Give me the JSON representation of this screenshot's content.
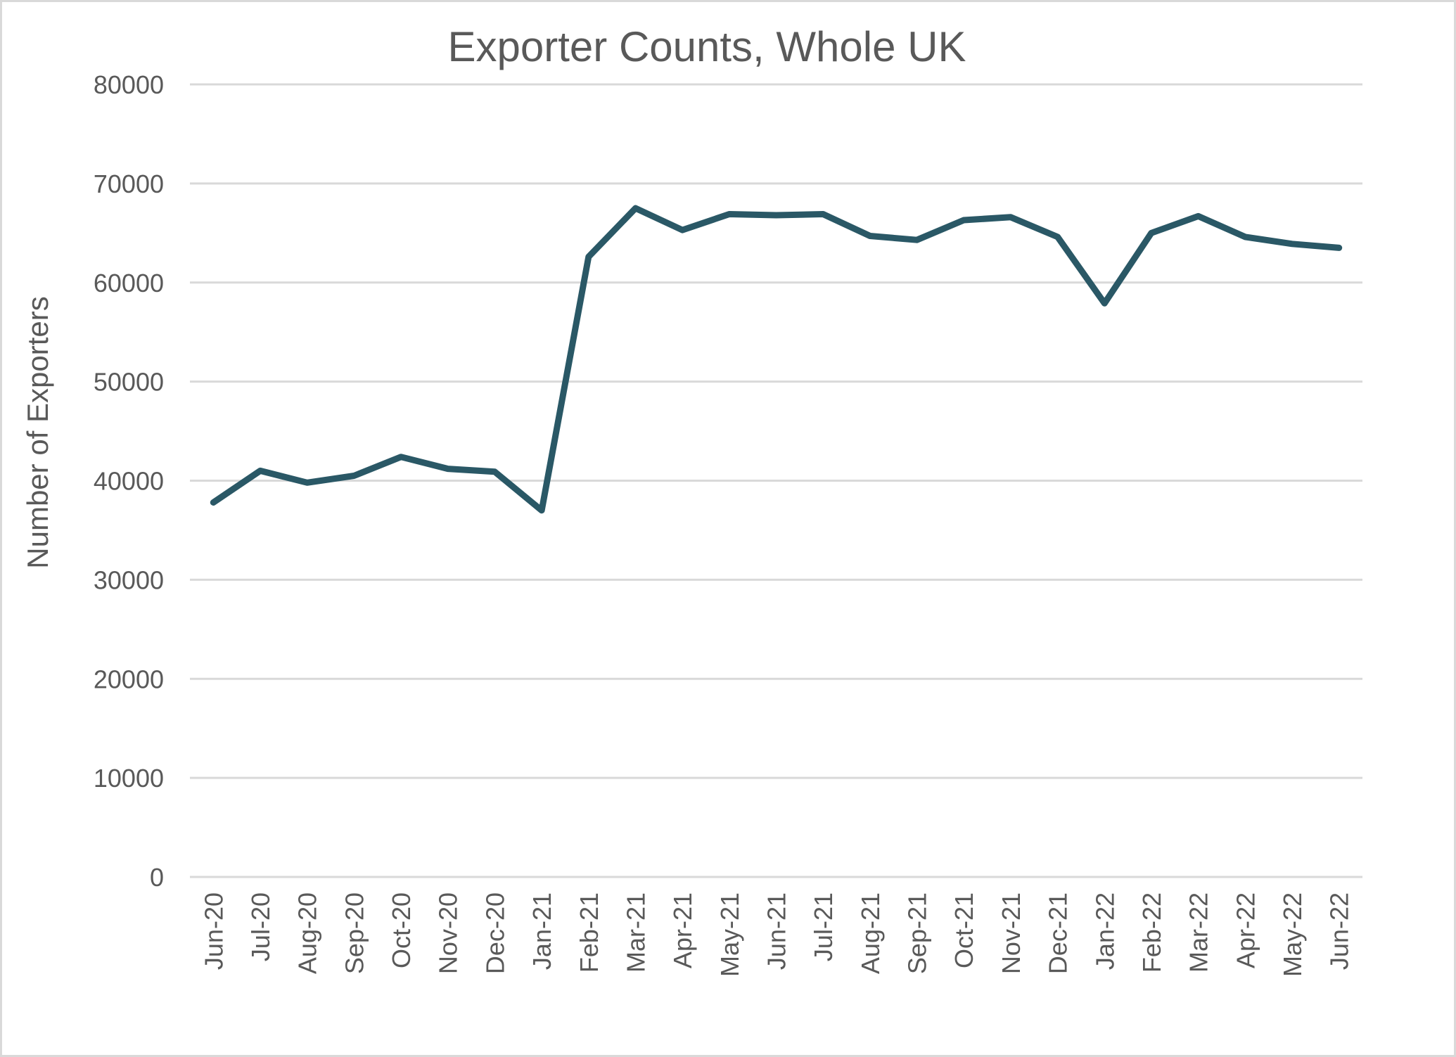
{
  "chart_data": {
    "type": "line",
    "title": "Exporter Counts, Whole UK",
    "xlabel": "",
    "ylabel": "Number of Exporters",
    "ylim": [
      0,
      80000
    ],
    "yticks": [
      0,
      10000,
      20000,
      30000,
      40000,
      50000,
      60000,
      70000,
      80000
    ],
    "grid": true,
    "legend": "none",
    "categories": [
      "Jun-20",
      "Jul-20",
      "Aug-20",
      "Sep-20",
      "Oct-20",
      "Nov-20",
      "Dec-20",
      "Jan-21",
      "Feb-21",
      "Mar-21",
      "Apr-21",
      "May-21",
      "Jun-21",
      "Jul-21",
      "Aug-21",
      "Sep-21",
      "Oct-21",
      "Nov-21",
      "Dec-21",
      "Jan-22",
      "Feb-22",
      "Mar-22",
      "Apr-22",
      "May-22",
      "Jun-22"
    ],
    "series": [
      {
        "name": "Exporters",
        "color": "#2a5866",
        "values": [
          37800,
          41000,
          39800,
          40500,
          42400,
          41200,
          40900,
          37000,
          62600,
          67500,
          65300,
          66900,
          66800,
          66900,
          64700,
          64300,
          66300,
          66600,
          64600,
          57900,
          65000,
          66700,
          64600,
          63900,
          63500
        ]
      }
    ]
  },
  "colors": {
    "line": "#2a5866",
    "grid": "#d9d9d9",
    "text": "#595959",
    "border": "#d9d9d9"
  }
}
